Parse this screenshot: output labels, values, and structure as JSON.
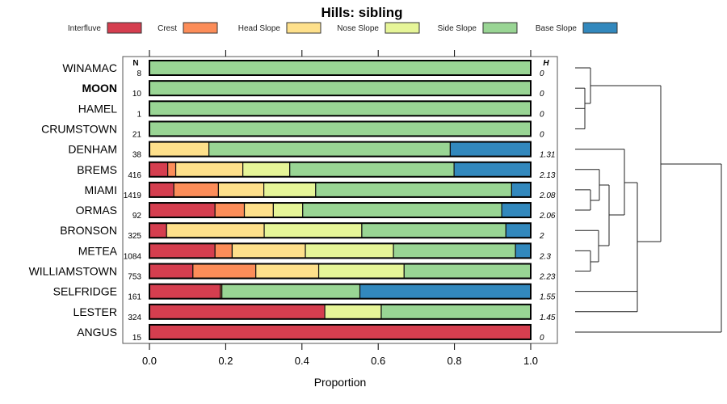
{
  "chart_data": {
    "type": "bar",
    "subtype": "stacked-horizontal-proportion",
    "title": "Hills: sibling",
    "xlabel": "Proportion",
    "xlim": [
      0,
      1
    ],
    "xticks": [
      "0.0",
      "0.2",
      "0.4",
      "0.6",
      "0.8",
      "1.0"
    ],
    "xtick_values": [
      0,
      0.2,
      0.4,
      0.6,
      0.8,
      1.0
    ],
    "n_header": "N",
    "h_header": "H",
    "legend_position": "top",
    "legend": [
      {
        "name": "Interfluve",
        "color": "#D53E4F"
      },
      {
        "name": "Crest",
        "color": "#FC8D59"
      },
      {
        "name": "Head Slope",
        "color": "#FEE08B"
      },
      {
        "name": "Nose Slope",
        "color": "#E6F598"
      },
      {
        "name": "Side Slope",
        "color": "#99D594"
      },
      {
        "name": "Base Slope",
        "color": "#3288BD"
      }
    ],
    "categories": [
      "WINAMAC",
      "MOON",
      "HAMEL",
      "CRUMSTOWN",
      "DENHAM",
      "BREMS",
      "MIAMI",
      "ORMAS",
      "BRONSON",
      "METEA",
      "WILLIAMSTOWN",
      "SELFRIDGE",
      "LESTER",
      "ANGUS"
    ],
    "highlight": "MOON",
    "n": [
      "8",
      "10",
      "1",
      "21",
      "38",
      "416",
      "1419",
      "92",
      "325",
      "1084",
      "753",
      "161",
      "324",
      "15"
    ],
    "h": [
      "0",
      "0",
      "0",
      "0",
      "1.31",
      "2.13",
      "2.08",
      "2.06",
      "2",
      "2.3",
      "2.23",
      "1.55",
      "1.45",
      "0"
    ],
    "series": [
      {
        "name": "Interfluve",
        "values": [
          0,
          0,
          0,
          0,
          0,
          0.048,
          0.064,
          0.172,
          0.045,
          0.172,
          0.114,
          0.186,
          0.46,
          1
        ]
      },
      {
        "name": "Crest",
        "values": [
          0,
          0,
          0,
          0,
          0,
          0.021,
          0.117,
          0.077,
          0,
          0.045,
          0.165,
          0.004,
          0,
          0
        ]
      },
      {
        "name": "Head Slope",
        "values": [
          0,
          0,
          0,
          0,
          0.156,
          0.176,
          0.119,
          0.076,
          0.256,
          0.192,
          0.165,
          0,
          0,
          0
        ]
      },
      {
        "name": "Nose Slope",
        "values": [
          0,
          0,
          0,
          0,
          0,
          0.123,
          0.136,
          0.077,
          0.256,
          0.231,
          0.224,
          0,
          0.148,
          0
        ]
      },
      {
        "name": "Side Slope",
        "values": [
          1,
          1,
          1,
          1,
          0.633,
          0.431,
          0.514,
          0.522,
          0.378,
          0.32,
          0.332,
          0.362,
          0.392,
          0
        ]
      },
      {
        "name": "Base Slope",
        "values": [
          0,
          0,
          0,
          0,
          0.211,
          0.201,
          0.05,
          0.076,
          0.065,
          0.04,
          0,
          0.448,
          0,
          0
        ]
      }
    ]
  }
}
